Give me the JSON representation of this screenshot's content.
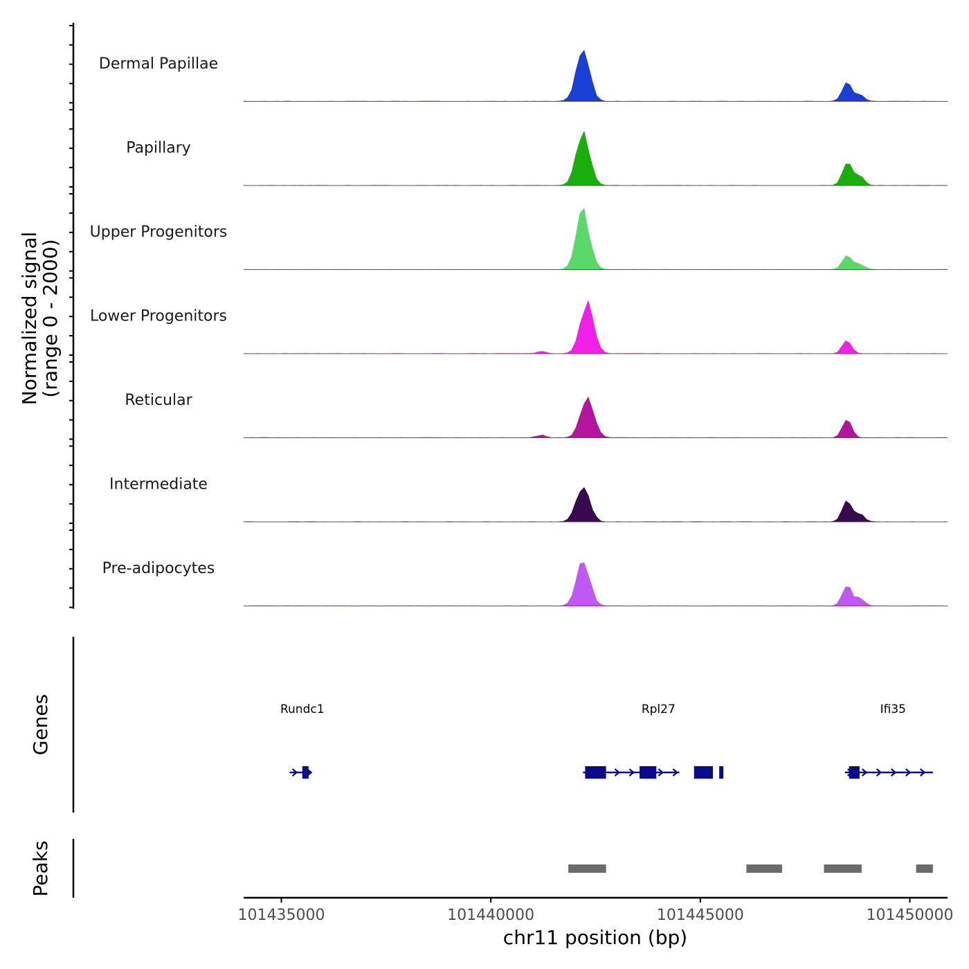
{
  "chart_data": {
    "type": "area",
    "chromosome": "chr11",
    "xlabel": "chr11 position (bp)",
    "x_range": [
      101434100,
      101450900
    ],
    "x_ticks": [
      101435000,
      101440000,
      101445000,
      101450000
    ],
    "x_tick_labels": [
      "101435000",
      "101440000",
      "101445000",
      "101450000"
    ],
    "coverage": {
      "ylabel_line1": "Normalized signal",
      "ylabel_line2": "(range 0 - 2000)",
      "y_range": [
        0,
        2000
      ],
      "tracks": [
        {
          "name": "Dermal Papillae",
          "color": "#1a3fd9",
          "peaks": [
            {
              "pos": 101442200,
              "height": 0.96
            },
            {
              "pos": 101448500,
              "height": 0.38
            },
            {
              "pos": 101448800,
              "height": 0.13
            }
          ]
        },
        {
          "name": "Papillary",
          "color": "#1aae0d",
          "peaks": [
            {
              "pos": 101442200,
              "height": 1.0
            },
            {
              "pos": 101448500,
              "height": 0.45
            },
            {
              "pos": 101448800,
              "height": 0.2
            }
          ]
        },
        {
          "name": "Upper Progenitors",
          "color": "#5ad86a",
          "peaks": [
            {
              "pos": 101442200,
              "height": 1.1
            },
            {
              "pos": 101448500,
              "height": 0.3
            },
            {
              "pos": 101448800,
              "height": 0.1
            }
          ]
        },
        {
          "name": "Lower Progenitors",
          "color": "#f020e8",
          "peaks": [
            {
              "pos": 101442300,
              "height": 0.98
            },
            {
              "pos": 101448500,
              "height": 0.24
            },
            {
              "pos": 101441200,
              "height": 0.04
            }
          ]
        },
        {
          "name": "Reticular",
          "color": "#b4149e",
          "peaks": [
            {
              "pos": 101442300,
              "height": 0.78
            },
            {
              "pos": 101448500,
              "height": 0.34
            },
            {
              "pos": 101441200,
              "height": 0.05
            }
          ]
        },
        {
          "name": "Intermediate",
          "color": "#38094f",
          "peaks": [
            {
              "pos": 101442200,
              "height": 0.7
            },
            {
              "pos": 101448500,
              "height": 0.42
            },
            {
              "pos": 101448800,
              "height": 0.16
            }
          ]
        },
        {
          "name": "Pre-adipocytes",
          "color": "#c157f5",
          "peaks": [
            {
              "pos": 101442200,
              "height": 0.86
            },
            {
              "pos": 101448500,
              "height": 0.4
            },
            {
              "pos": 101448800,
              "height": 0.15
            }
          ]
        }
      ]
    },
    "genes": {
      "track_label": "Genes",
      "color": "#0a0a8c",
      "items": [
        {
          "name": "Rundc1",
          "label_pos": 101435500,
          "start": 101435200,
          "end": 101435700,
          "exons": [
            [
              101435500,
              101435650
            ]
          ]
        },
        {
          "name": "Rpl27",
          "label_pos": 101444000,
          "start": 101442200,
          "end": 101444500,
          "exons": [
            [
              101442250,
              101442750
            ],
            [
              101443550,
              101443950
            ],
            [
              101444850,
              101445300
            ],
            [
              101445450,
              101445550
            ]
          ]
        },
        {
          "name": "Ifi35",
          "label_pos": 101449600,
          "start": 101448450,
          "end": 101450550,
          "exons": [
            [
              101448550,
              101448800
            ]
          ]
        }
      ]
    },
    "peaks": {
      "track_label": "Peaks",
      "color": "#6b6b6b",
      "regions": [
        [
          101441850,
          101442750
        ],
        [
          101446100,
          101446950
        ],
        [
          101447950,
          101448850
        ],
        [
          101450150,
          101450550
        ]
      ]
    }
  }
}
